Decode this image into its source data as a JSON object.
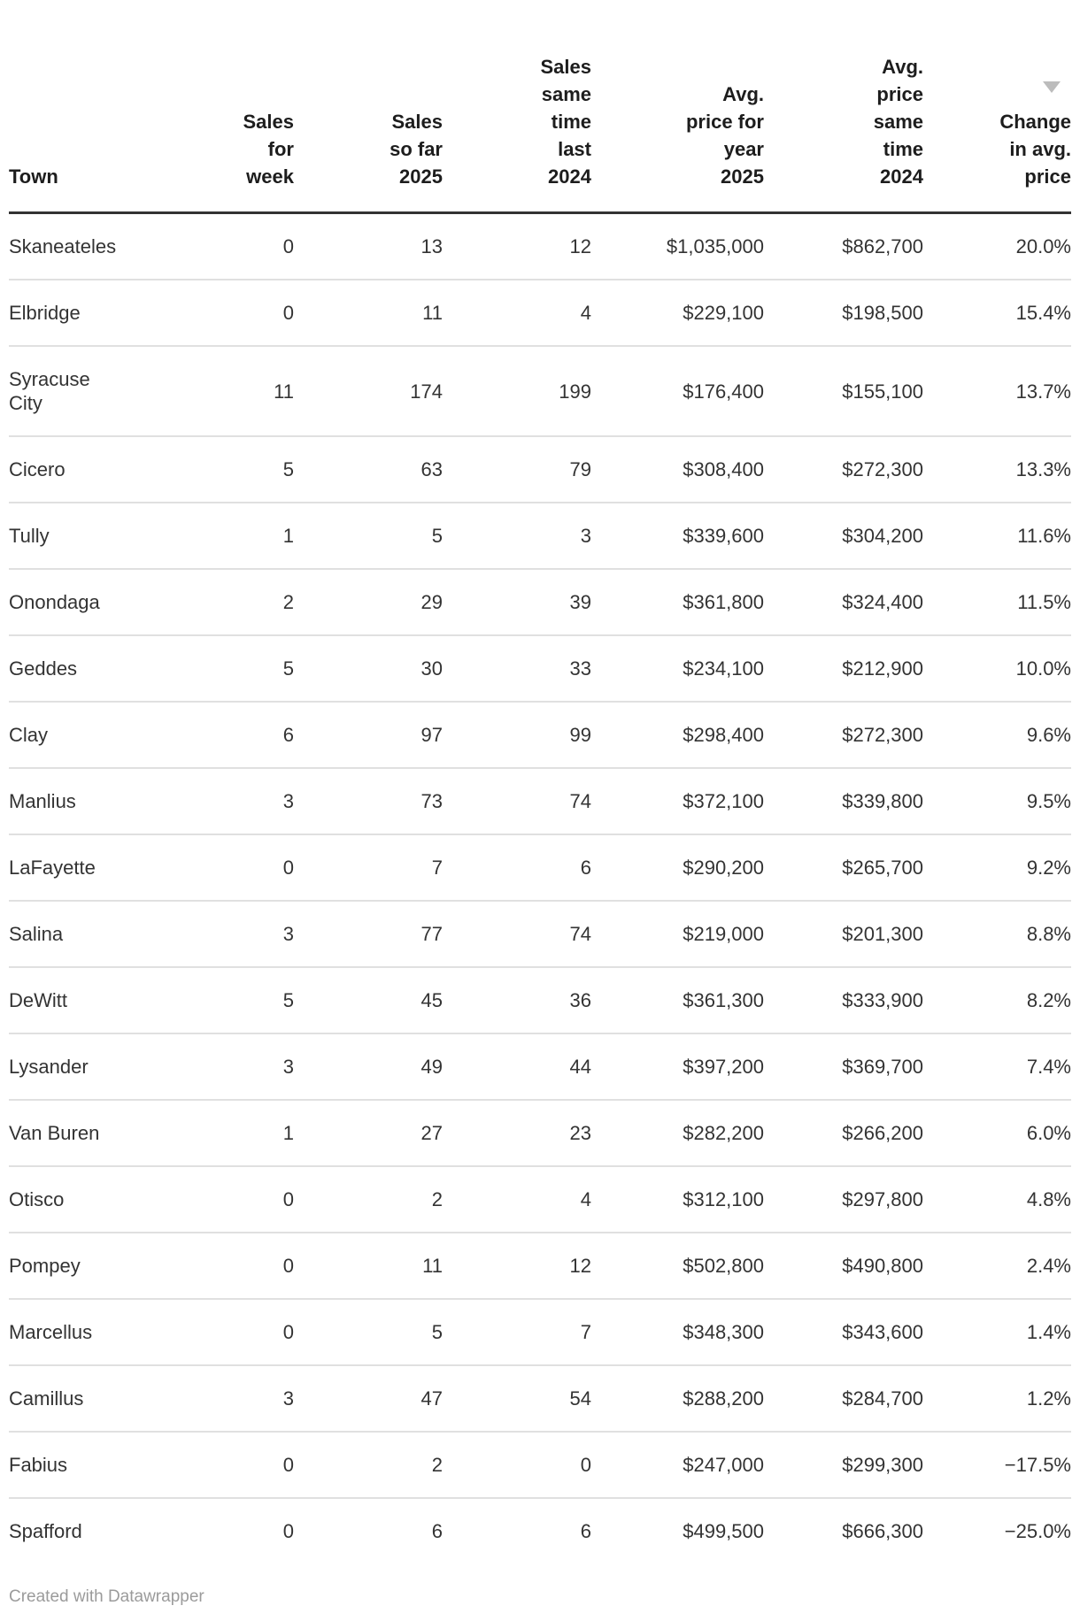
{
  "chart_data": {
    "type": "table",
    "columns": [
      "Town",
      "Sales for week",
      "Sales so far 2025",
      "Sales same time last 2024",
      "Avg. price for year 2025",
      "Avg. price same time 2024",
      "Change in avg. price"
    ],
    "rows": [
      [
        "Skaneateles",
        "0",
        "13",
        "12",
        "$1,035,000",
        "$862,700",
        "20.0%"
      ],
      [
        "Elbridge",
        "0",
        "11",
        "4",
        "$229,100",
        "$198,500",
        "15.4%"
      ],
      [
        "Syracuse City",
        "11",
        "174",
        "199",
        "$176,400",
        "$155,100",
        "13.7%"
      ],
      [
        "Cicero",
        "5",
        "63",
        "79",
        "$308,400",
        "$272,300",
        "13.3%"
      ],
      [
        "Tully",
        "1",
        "5",
        "3",
        "$339,600",
        "$304,200",
        "11.6%"
      ],
      [
        "Onondaga",
        "2",
        "29",
        "39",
        "$361,800",
        "$324,400",
        "11.5%"
      ],
      [
        "Geddes",
        "5",
        "30",
        "33",
        "$234,100",
        "$212,900",
        "10.0%"
      ],
      [
        "Clay",
        "6",
        "97",
        "99",
        "$298,400",
        "$272,300",
        "9.6%"
      ],
      [
        "Manlius",
        "3",
        "73",
        "74",
        "$372,100",
        "$339,800",
        "9.5%"
      ],
      [
        "LaFayette",
        "0",
        "7",
        "6",
        "$290,200",
        "$265,700",
        "9.2%"
      ],
      [
        "Salina",
        "3",
        "77",
        "74",
        "$219,000",
        "$201,300",
        "8.8%"
      ],
      [
        "DeWitt",
        "5",
        "45",
        "36",
        "$361,300",
        "$333,900",
        "8.2%"
      ],
      [
        "Lysander",
        "3",
        "49",
        "44",
        "$397,200",
        "$369,700",
        "7.4%"
      ],
      [
        "Van Buren",
        "1",
        "27",
        "23",
        "$282,200",
        "$266,200",
        "6.0%"
      ],
      [
        "Otisco",
        "0",
        "2",
        "4",
        "$312,100",
        "$297,800",
        "4.8%"
      ],
      [
        "Pompey",
        "0",
        "11",
        "12",
        "$502,800",
        "$490,800",
        "2.4%"
      ],
      [
        "Marcellus",
        "0",
        "5",
        "7",
        "$348,300",
        "$343,600",
        "1.4%"
      ],
      [
        "Camillus",
        "3",
        "47",
        "54",
        "$288,200",
        "$284,700",
        "1.2%"
      ],
      [
        "Fabius",
        "0",
        "2",
        "0",
        "$247,000",
        "$299,300",
        "−17.5%"
      ],
      [
        "Spafford",
        "0",
        "6",
        "6",
        "$499,500",
        "$666,300",
        "−25.0%"
      ]
    ],
    "sorted_by_column": "Change in avg. price",
    "sort_indicator": "triangle-down"
  },
  "header": {
    "columns": [
      {
        "id": "town",
        "lines": [
          "Town"
        ],
        "align": "left",
        "sort_icon": false
      },
      {
        "id": "sales_for_week",
        "lines": [
          "Sales",
          "for",
          "week"
        ],
        "align": "right",
        "sort_icon": false
      },
      {
        "id": "sales_so_far_2025",
        "lines": [
          "Sales",
          "so far",
          "2025"
        ],
        "align": "right",
        "sort_icon": false
      },
      {
        "id": "sales_same_time_2024",
        "lines": [
          "Sales",
          "same",
          "time",
          "last",
          "2024"
        ],
        "align": "right",
        "sort_icon": false
      },
      {
        "id": "avg_price_2025",
        "lines": [
          "Avg.",
          "price for",
          "year",
          "2025"
        ],
        "align": "right",
        "sort_icon": false
      },
      {
        "id": "avg_price_2024",
        "lines": [
          "Avg.",
          "price",
          "same",
          "time",
          "2024"
        ],
        "align": "right",
        "sort_icon": false
      },
      {
        "id": "change_avg_price",
        "lines": [
          "Change",
          "in avg.",
          "price"
        ],
        "align": "right",
        "sort_icon": true
      }
    ],
    "wrapped_town_lines": {
      "Syracuse City": [
        "Syracuse",
        "City"
      ]
    }
  },
  "footer": {
    "credit": "Created with Datawrapper"
  },
  "colors": {
    "background": "#ffffff",
    "header_text": "#1d1d1d",
    "body_text": "#333333",
    "header_rule": "#333333",
    "row_divider": "#e0e0e0",
    "sort_arrow": "#bcbcbc",
    "credit_text": "#9b9b9b"
  }
}
